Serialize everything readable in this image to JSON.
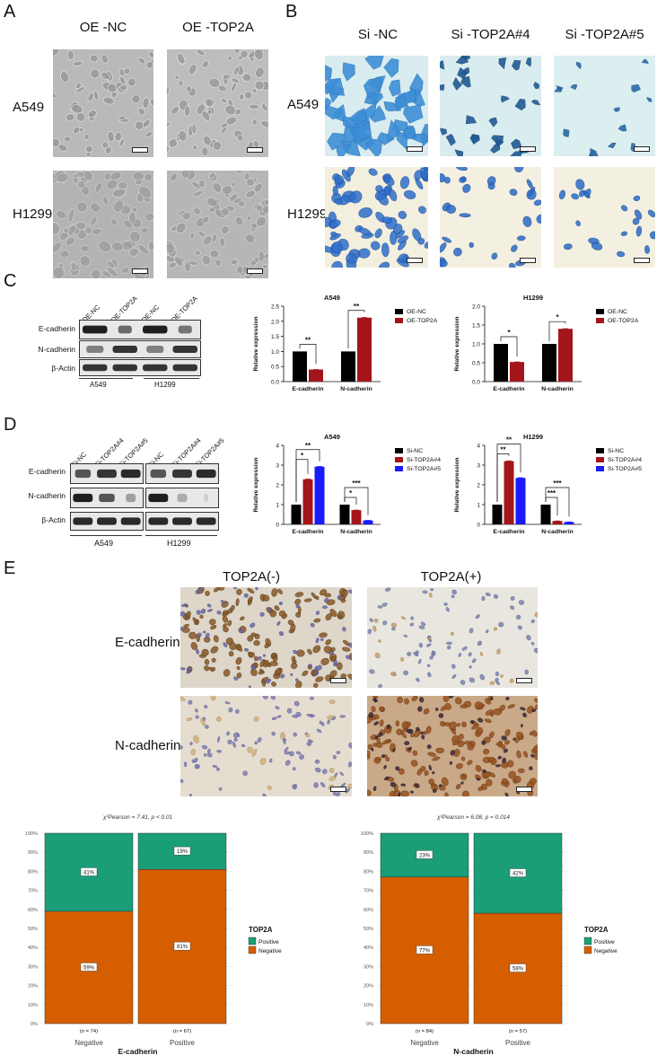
{
  "panels": {
    "A": {
      "letter": "A",
      "columns": [
        "OE -NC",
        "OE -TOP2A"
      ],
      "rows": [
        "A549",
        "H1299"
      ]
    },
    "B": {
      "letter": "B",
      "columns": [
        "Si -NC",
        "Si -TOP2A#4",
        "Si -TOP2A#5"
      ],
      "rows": [
        "A549",
        "H1299"
      ]
    },
    "C": {
      "letter": "C",
      "wb": {
        "lanes": [
          "OE-NC",
          "OE-TOP2A",
          "OE-NC",
          "OE-TOP2A"
        ],
        "proteins": [
          "E-cadherin",
          "N-cadherin",
          "β-Actin"
        ],
        "groups": [
          "A549",
          "H1299"
        ]
      }
    },
    "D": {
      "letter": "D",
      "wb": {
        "lanes": [
          "Si-NC",
          "Si-TOP2A#4",
          "Si-TOP2A#5",
          "Si-NC",
          "Si-TOP2A#4",
          "Si-TOP2A#5"
        ],
        "proteins": [
          "E-cadherin",
          "N-cadherin",
          "β-Actin"
        ],
        "groups": [
          "A549",
          "H1299"
        ]
      }
    },
    "E": {
      "letter": "E",
      "columns": [
        "TOP2A(-)",
        "TOP2A(+)"
      ],
      "rows": [
        "E-cadherin",
        "N-cadherin"
      ]
    }
  },
  "chart_data": [
    {
      "id": "C-A549",
      "type": "bar",
      "title": "A549",
      "ylabel": "Relative expression",
      "categories": [
        "E-cadherin",
        "N-cadherin"
      ],
      "ylim": [
        0,
        2.5
      ],
      "yticks": [
        "0.0",
        "0.5",
        "1.0",
        "1.5",
        "2.0",
        "2.5"
      ],
      "series": [
        {
          "name": "OE-NC",
          "values": [
            1.0,
            1.0
          ],
          "color": "#000000"
        },
        {
          "name": "OE-TOP2A",
          "values": [
            0.4,
            2.12
          ],
          "color": "#a3151a"
        }
      ],
      "sig": [
        "**",
        "**"
      ]
    },
    {
      "id": "C-H1299",
      "type": "bar",
      "title": "H1299",
      "ylabel": "Relative expression",
      "categories": [
        "E-cadherin",
        "N-cadherin"
      ],
      "ylim": [
        0,
        2.0
      ],
      "yticks": [
        "0.0",
        "0.5",
        "1.0",
        "1.5",
        "2.0"
      ],
      "series": [
        {
          "name": "OE-NC",
          "values": [
            1.0,
            1.0
          ],
          "color": "#000000"
        },
        {
          "name": "OE-TOP2A",
          "values": [
            0.52,
            1.4
          ],
          "color": "#a3151a"
        }
      ],
      "sig": [
        "*",
        "*"
      ]
    },
    {
      "id": "D-A549",
      "type": "bar",
      "title": "A549",
      "ylabel": "Relative expression",
      "categories": [
        "E-cadherin",
        "N-cadherin"
      ],
      "ylim": [
        0,
        4
      ],
      "yticks": [
        "0",
        "1",
        "2",
        "3",
        "4"
      ],
      "series": [
        {
          "name": "Si-NC",
          "values": [
            1.0,
            1.0
          ],
          "color": "#000000"
        },
        {
          "name": "Si-TOP2A#4",
          "values": [
            2.28,
            0.72
          ],
          "color": "#a3151a"
        },
        {
          "name": "Si-TOP2A#5",
          "values": [
            2.92,
            0.2
          ],
          "color": "#1a1aff"
        }
      ],
      "sig": [
        "*",
        "**",
        "*",
        "***"
      ]
    },
    {
      "id": "D-H1299",
      "type": "bar",
      "title": "H1299",
      "ylabel": "Relative expression",
      "categories": [
        "E-cadherin",
        "N-cadherin"
      ],
      "ylim": [
        0,
        4
      ],
      "yticks": [
        "0",
        "1",
        "2",
        "3",
        "4"
      ],
      "series": [
        {
          "name": "Si-NC",
          "values": [
            1.0,
            1.0
          ],
          "color": "#000000"
        },
        {
          "name": "Si-TOP2A#4",
          "values": [
            3.2,
            0.17
          ],
          "color": "#a3151a"
        },
        {
          "name": "Si-TOP2A#5",
          "values": [
            2.35,
            0.12
          ],
          "color": "#1a1aff"
        }
      ],
      "sig": [
        "**",
        "**",
        "***",
        "***"
      ]
    },
    {
      "id": "E-Ecad",
      "type": "bar",
      "stacked": true,
      "stat": "χ²Pearson = 7.41, p < 0.01",
      "xlabel": "E-cadherin",
      "categories": [
        "Negative",
        "Positive"
      ],
      "n": [
        "(n = 74)",
        "(n = 67)"
      ],
      "yticks": [
        "0%",
        "10%",
        "20%",
        "30%",
        "40%",
        "50%",
        "60%",
        "70%",
        "80%",
        "90%",
        "100%"
      ],
      "series": [
        {
          "name": "Negative",
          "values": [
            59,
            81
          ],
          "labels": [
            "59%",
            "81%"
          ],
          "color": "#d55e00"
        },
        {
          "name": "Positive",
          "values": [
            41,
            19
          ],
          "labels": [
            "41%",
            "19%"
          ],
          "color": "#1a9e77"
        }
      ],
      "legend_title": "TOP2A"
    },
    {
      "id": "E-Ncad",
      "type": "bar",
      "stacked": true,
      "stat": "χ²Pearson = 6.08, p = 0.014",
      "xlabel": "N-cadherin",
      "categories": [
        "Negative",
        "Positive"
      ],
      "n": [
        "(n = 84)",
        "(n = 57)"
      ],
      "yticks": [
        "0%",
        "10%",
        "20%",
        "30%",
        "40%",
        "50%",
        "60%",
        "70%",
        "80%",
        "90%",
        "100%"
      ],
      "series": [
        {
          "name": "Negative",
          "values": [
            77,
            58
          ],
          "labels": [
            "77%",
            "58%"
          ],
          "color": "#d55e00"
        },
        {
          "name": "Positive",
          "values": [
            23,
            42
          ],
          "labels": [
            "23%",
            "42%"
          ],
          "color": "#1a9e77"
        }
      ],
      "legend_title": "TOP2A"
    }
  ]
}
